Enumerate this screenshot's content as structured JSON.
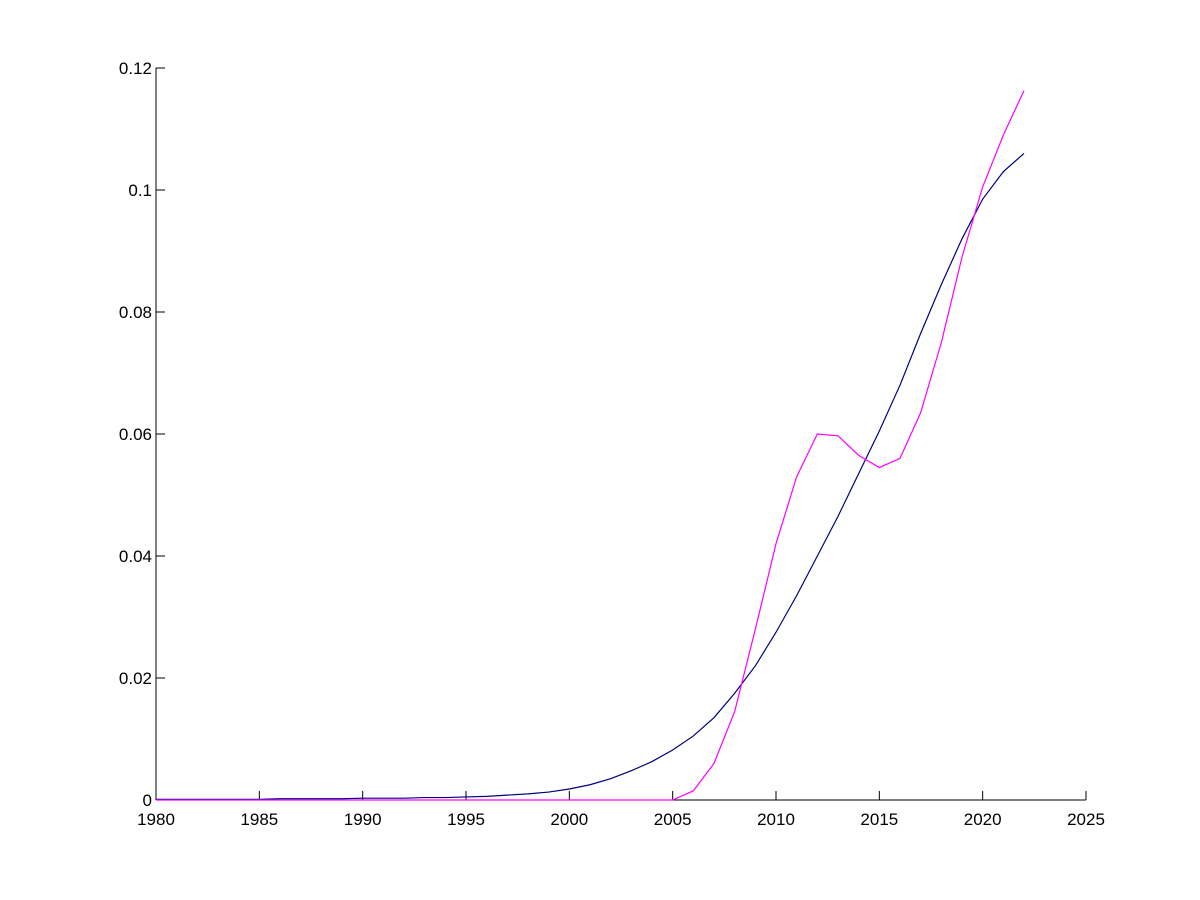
{
  "chart_data": {
    "type": "line",
    "x": [
      1980,
      1981,
      1982,
      1983,
      1984,
      1985,
      1986,
      1987,
      1988,
      1989,
      1990,
      1991,
      1992,
      1993,
      1994,
      1995,
      1996,
      1997,
      1998,
      1999,
      2000,
      2001,
      2002,
      2003,
      2004,
      2005,
      2006,
      2007,
      2008,
      2009,
      2010,
      2011,
      2012,
      2013,
      2014,
      2015,
      2016,
      2017,
      2018,
      2019,
      2020,
      2021,
      2022
    ],
    "series": [
      {
        "color": "#000080",
        "values": [
          0.0001,
          0.0001,
          0.0001,
          0.0001,
          0.0001,
          0.0001,
          0.0002,
          0.0002,
          0.0002,
          0.0002,
          0.0003,
          0.0003,
          0.0003,
          0.0004,
          0.0004,
          0.0005,
          0.0006,
          0.0008,
          0.001,
          0.0013,
          0.0018,
          0.0025,
          0.0035,
          0.0048,
          0.0063,
          0.0082,
          0.0105,
          0.0135,
          0.0175,
          0.022,
          0.0275,
          0.0335,
          0.04,
          0.0465,
          0.0535,
          0.0605,
          0.068,
          0.0765,
          0.0845,
          0.092,
          0.0985,
          0.103,
          0.106
        ]
      },
      {
        "color": "#ff00ff",
        "values": [
          0,
          0,
          0,
          0,
          0,
          0,
          0,
          0,
          0,
          0,
          0,
          0,
          0,
          0,
          0,
          0,
          0,
          0,
          0,
          0,
          0,
          0,
          0,
          0,
          0,
          0,
          0.0015,
          0.006,
          0.0145,
          0.028,
          0.042,
          0.053,
          0.06,
          0.0597,
          0.0565,
          0.0545,
          0.056,
          0.0635,
          0.075,
          0.089,
          0.1005,
          0.109,
          0.1163
        ]
      }
    ],
    "xlim": [
      1980,
      2025
    ],
    "xticks": [
      1980,
      1985,
      1990,
      1995,
      2000,
      2005,
      2010,
      2015,
      2020,
      2025
    ],
    "ylim": [
      0,
      0.12
    ],
    "yticks": [
      0,
      0.02,
      0.04,
      0.06,
      0.08,
      0.1,
      0.12
    ]
  }
}
